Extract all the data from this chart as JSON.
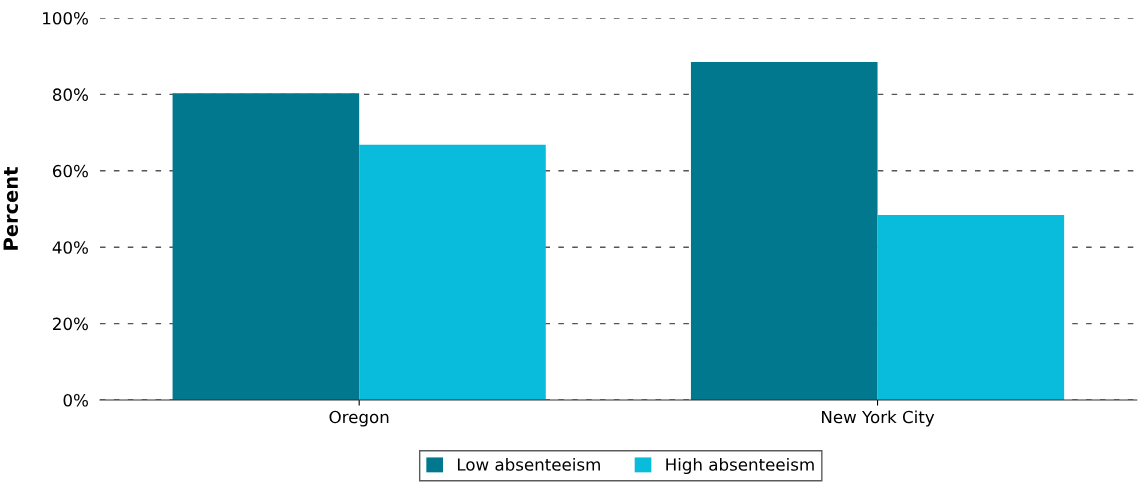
{
  "chart_data": {
    "type": "bar",
    "ylabel": "Percent",
    "categories": [
      "Oregon",
      "New York City"
    ],
    "series": [
      {
        "name": "Low absenteeism",
        "color": "#01788e",
        "values": [
          80.3,
          88.5
        ]
      },
      {
        "name": "High absenteeism",
        "color": "#0abcdb",
        "values": [
          66.8,
          48.4
        ]
      }
    ],
    "ylim": [
      0,
      100
    ],
    "yticks": [
      {
        "value": 0,
        "label": "0%"
      },
      {
        "value": 20,
        "label": "20%"
      },
      {
        "value": 40,
        "label": "40%"
      },
      {
        "value": 60,
        "label": "60%"
      },
      {
        "value": 80,
        "label": "80%"
      },
      {
        "value": 100,
        "label": "100%"
      }
    ],
    "grid": "y",
    "legend": "bottom"
  }
}
